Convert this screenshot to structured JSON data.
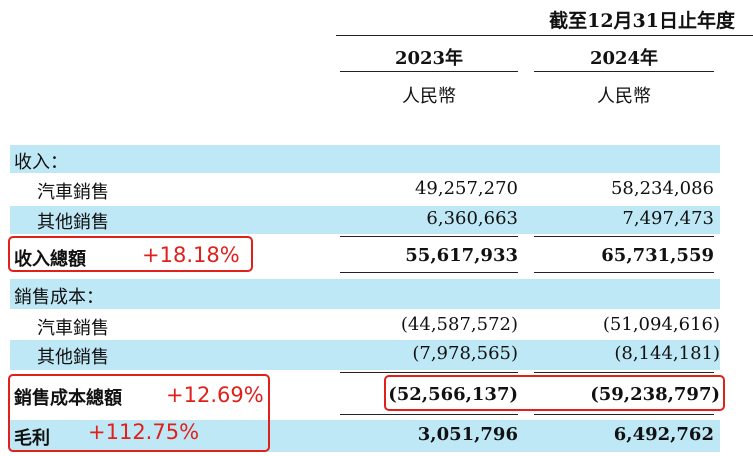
{
  "header": {
    "period": "截至12月31日止年度",
    "col1_year": "2023年",
    "col2_year": "2024年",
    "col1_currency": "人民幣",
    "col2_currency": "人民幣"
  },
  "rows": {
    "revenue_header": "收入：",
    "rev_auto_label": "汽車銷售",
    "rev_auto_2023": "49,257,270",
    "rev_auto_2024": "58,234,086",
    "rev_other_label": "其他銷售",
    "rev_other_2023": "6,360,663",
    "rev_other_2024": "7,497,473",
    "rev_total_label": "收入總額",
    "rev_total_2023": "55,617,933",
    "rev_total_2024": "65,731,559",
    "cost_header": "銷售成本：",
    "cost_auto_label": "汽車銷售",
    "cost_auto_2023": "(44,587,572)",
    "cost_auto_2024": "(51,094,616)",
    "cost_other_label": "其他銷售",
    "cost_other_2023": "(7,978,565)",
    "cost_other_2024": "(8,144,181)",
    "cost_total_label": "銷售成本總額",
    "cost_total_2023": "(52,566,137)",
    "cost_total_2024": "(59,238,797)",
    "gross_label": "毛利",
    "gross_2023": "3,051,796",
    "gross_2024": "6,492,762"
  },
  "annotations": {
    "rev_growth": "+18.18%",
    "cost_growth": "+12.69%",
    "gross_growth": "+112.75%",
    "color": "#e0201b"
  },
  "colors": {
    "row_band": "#bfe8f6"
  }
}
